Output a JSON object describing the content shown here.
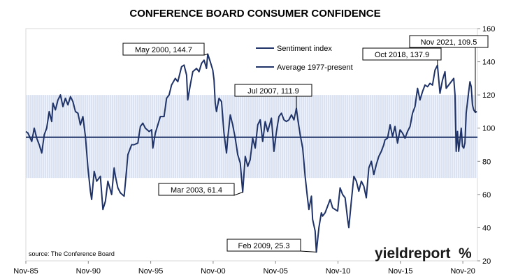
{
  "chart_data": {
    "type": "line",
    "title": "CONFERENCE BOARD CONSUMER CONFIDENCE",
    "source": "source: The Conference Board",
    "brand": {
      "text": "yieldreport",
      "mark": "%",
      "mark_color": "#c0392b"
    },
    "x_ticks": [
      "Nov-85",
      "Nov-90",
      "Nov-95",
      "Nov-00",
      "Nov-05",
      "Nov-10",
      "Nov-15",
      "Nov-20"
    ],
    "x_range": [
      1985.83,
      2022.0
    ],
    "ylim": [
      20,
      160
    ],
    "y_ticks": [
      20,
      40,
      60,
      80,
      100,
      120,
      140,
      160
    ],
    "y_axis_side": "right",
    "band": {
      "range": [
        70,
        120
      ],
      "color": "#c8d4ea"
    },
    "legend": {
      "placement": "top-center",
      "items": [
        "Sentiment index",
        "Average 1977-present"
      ]
    },
    "average": {
      "name": "Average 1977-present",
      "value": 94.5,
      "color": "#1f3368"
    },
    "series": [
      {
        "name": "Sentiment index",
        "color": "#1f3368",
        "points": [
          [
            1985.83,
            98
          ],
          [
            1986.0,
            97
          ],
          [
            1986.3,
            92
          ],
          [
            1986.5,
            100
          ],
          [
            1986.7,
            94
          ],
          [
            1986.9,
            90
          ],
          [
            1987.1,
            85
          ],
          [
            1987.3,
            96
          ],
          [
            1987.5,
            100
          ],
          [
            1987.7,
            110
          ],
          [
            1987.9,
            104
          ],
          [
            1988.0,
            115
          ],
          [
            1988.2,
            111
          ],
          [
            1988.4,
            117
          ],
          [
            1988.6,
            120
          ],
          [
            1988.8,
            113
          ],
          [
            1989.0,
            118
          ],
          [
            1989.2,
            114
          ],
          [
            1989.4,
            119
          ],
          [
            1989.6,
            116
          ],
          [
            1989.8,
            110
          ],
          [
            1990.0,
            109
          ],
          [
            1990.2,
            102
          ],
          [
            1990.4,
            107
          ],
          [
            1990.6,
            95
          ],
          [
            1990.8,
            76
          ],
          [
            1991.0,
            62
          ],
          [
            1991.1,
            57
          ],
          [
            1991.3,
            74
          ],
          [
            1991.5,
            68
          ],
          [
            1991.8,
            71
          ],
          [
            1992.0,
            51
          ],
          [
            1992.2,
            56
          ],
          [
            1992.4,
            68
          ],
          [
            1992.7,
            60
          ],
          [
            1992.9,
            76
          ],
          [
            1993.0,
            71
          ],
          [
            1993.2,
            64
          ],
          [
            1993.4,
            61
          ],
          [
            1993.7,
            59
          ],
          [
            1993.9,
            75
          ],
          [
            1994.0,
            84
          ],
          [
            1994.3,
            90
          ],
          [
            1994.5,
            90
          ],
          [
            1994.8,
            91
          ],
          [
            1995.0,
            101
          ],
          [
            1995.2,
            103
          ],
          [
            1995.4,
            100
          ],
          [
            1995.7,
            98
          ],
          [
            1995.9,
            99
          ],
          [
            1996.0,
            88
          ],
          [
            1996.2,
            97
          ],
          [
            1996.4,
            102
          ],
          [
            1996.6,
            107
          ],
          [
            1996.9,
            107
          ],
          [
            1997.1,
            118
          ],
          [
            1997.3,
            120
          ],
          [
            1997.5,
            126
          ],
          [
            1997.8,
            130
          ],
          [
            1998.0,
            128
          ],
          [
            1998.3,
            137
          ],
          [
            1998.5,
            138
          ],
          [
            1998.7,
            132
          ],
          [
            1998.8,
            117
          ],
          [
            1999.0,
            126
          ],
          [
            1999.2,
            134
          ],
          [
            1999.5,
            136
          ],
          [
            1999.7,
            134
          ],
          [
            1999.9,
            139
          ],
          [
            2000.1,
            141
          ],
          [
            2000.3,
            136
          ],
          [
            2000.4,
            144.7
          ],
          [
            2000.6,
            140
          ],
          [
            2000.8,
            135
          ],
          [
            2000.9,
            129
          ],
          [
            2001.0,
            115
          ],
          [
            2001.1,
            110
          ],
          [
            2001.3,
            118
          ],
          [
            2001.5,
            116
          ],
          [
            2001.7,
            97
          ],
          [
            2001.9,
            85
          ],
          [
            2002.0,
            94
          ],
          [
            2002.2,
            108
          ],
          [
            2002.4,
            102
          ],
          [
            2002.6,
            94
          ],
          [
            2002.8,
            84
          ],
          [
            2003.0,
            79
          ],
          [
            2003.2,
            61.4
          ],
          [
            2003.4,
            83
          ],
          [
            2003.6,
            77
          ],
          [
            2003.8,
            81
          ],
          [
            2004.0,
            94
          ],
          [
            2004.2,
            88
          ],
          [
            2004.4,
            102
          ],
          [
            2004.6,
            105
          ],
          [
            2004.8,
            92
          ],
          [
            2005.0,
            104
          ],
          [
            2005.2,
            98
          ],
          [
            2005.5,
            106
          ],
          [
            2005.7,
            86
          ],
          [
            2005.9,
            98
          ],
          [
            2006.1,
            107
          ],
          [
            2006.3,
            109
          ],
          [
            2006.5,
            105
          ],
          [
            2006.7,
            104
          ],
          [
            2006.9,
            105
          ],
          [
            2007.1,
            108
          ],
          [
            2007.3,
            105
          ],
          [
            2007.5,
            111.9
          ],
          [
            2007.6,
            106
          ],
          [
            2007.8,
            96
          ],
          [
            2008.0,
            88
          ],
          [
            2008.2,
            71
          ],
          [
            2008.4,
            57
          ],
          [
            2008.5,
            51
          ],
          [
            2008.7,
            59
          ],
          [
            2008.8,
            45
          ],
          [
            2009.0,
            38
          ],
          [
            2009.1,
            25.3
          ],
          [
            2009.3,
            40
          ],
          [
            2009.5,
            49
          ],
          [
            2009.6,
            47
          ],
          [
            2009.8,
            49
          ],
          [
            2010.0,
            53
          ],
          [
            2010.2,
            57
          ],
          [
            2010.4,
            52
          ],
          [
            2010.6,
            51
          ],
          [
            2010.8,
            50
          ],
          [
            2011.0,
            64
          ],
          [
            2011.2,
            60
          ],
          [
            2011.4,
            58
          ],
          [
            2011.6,
            45
          ],
          [
            2011.7,
            40
          ],
          [
            2011.9,
            56
          ],
          [
            2012.1,
            71
          ],
          [
            2012.3,
            68
          ],
          [
            2012.5,
            62
          ],
          [
            2012.7,
            68
          ],
          [
            2012.9,
            65
          ],
          [
            2013.1,
            58
          ],
          [
            2013.3,
            76
          ],
          [
            2013.5,
            80
          ],
          [
            2013.7,
            72
          ],
          [
            2013.9,
            78
          ],
          [
            2014.1,
            83
          ],
          [
            2014.3,
            86
          ],
          [
            2014.5,
            90
          ],
          [
            2014.6,
            93
          ],
          [
            2014.8,
            94
          ],
          [
            2015.0,
            102
          ],
          [
            2015.2,
            95
          ],
          [
            2015.4,
            101
          ],
          [
            2015.6,
            91
          ],
          [
            2015.8,
            99
          ],
          [
            2016.0,
            97
          ],
          [
            2016.2,
            94
          ],
          [
            2016.4,
            98
          ],
          [
            2016.6,
            101
          ],
          [
            2016.8,
            109
          ],
          [
            2017.0,
            113
          ],
          [
            2017.2,
            124
          ],
          [
            2017.4,
            117
          ],
          [
            2017.6,
            122
          ],
          [
            2017.8,
            126
          ],
          [
            2018.0,
            125
          ],
          [
            2018.2,
            127
          ],
          [
            2018.4,
            126
          ],
          [
            2018.6,
            135
          ],
          [
            2018.8,
            137.9
          ],
          [
            2019.0,
            121
          ],
          [
            2019.2,
            129
          ],
          [
            2019.4,
            134
          ],
          [
            2019.5,
            124
          ],
          [
            2019.7,
            126
          ],
          [
            2019.9,
            128
          ],
          [
            2020.1,
            130
          ],
          [
            2020.2,
            120
          ],
          [
            2020.3,
            86
          ],
          [
            2020.4,
            98
          ],
          [
            2020.5,
            86
          ],
          [
            2020.7,
            100
          ],
          [
            2020.8,
            89
          ],
          [
            2020.9,
            88
          ],
          [
            2021.0,
            91
          ],
          [
            2021.1,
            109
          ],
          [
            2021.3,
            122
          ],
          [
            2021.4,
            128
          ],
          [
            2021.5,
            125
          ],
          [
            2021.6,
            114
          ],
          [
            2021.7,
            111
          ],
          [
            2021.83,
            109.5
          ],
          [
            2021.95,
            110
          ]
        ]
      }
    ],
    "annotations": [
      {
        "label": "May 2000, 144.7",
        "x": 2000.4,
        "y": 144.7
      },
      {
        "label": "Mar 2003, 61.4",
        "x": 2003.2,
        "y": 61.4
      },
      {
        "label": "Jul 2007, 111.9",
        "x": 2007.5,
        "y": 111.9
      },
      {
        "label": "Feb 2009, 25.3",
        "x": 2009.1,
        "y": 25.3
      },
      {
        "label": "Oct 2018, 137.9",
        "x": 2018.8,
        "y": 137.9
      },
      {
        "label": "Nov 2021, 109.5",
        "x": 2021.83,
        "y": 109.5
      }
    ]
  }
}
